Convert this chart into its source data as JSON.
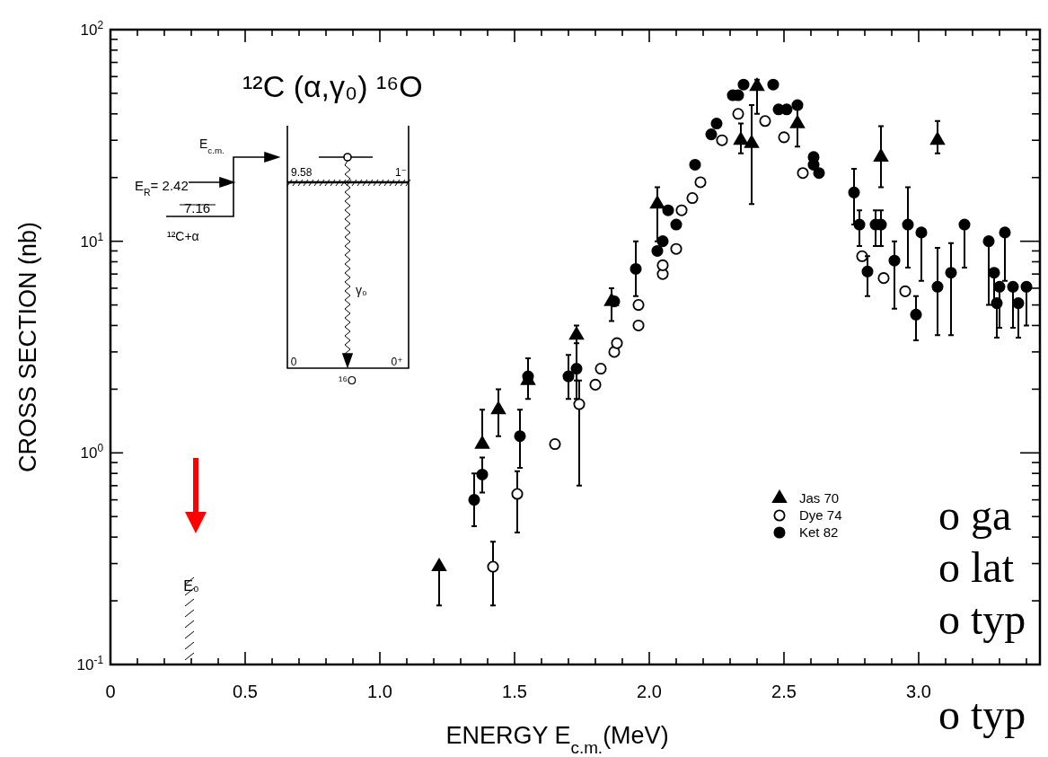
{
  "chart_data": {
    "type": "scatter",
    "xlabel": "ENERGY    E$_{c.m.}$(MeV)",
    "ylabel": "CROSS SECTION (nb)",
    "log": "y",
    "xlim": [
      0,
      3.45
    ],
    "ylim": [
      0.1,
      100
    ],
    "xticks": [
      0,
      {
        "value": 0.1,
        "label": null
      },
      {
        "value": 0.2,
        "label": null
      },
      {
        "value": 0.3,
        "label": null
      },
      {
        "value": 0.4,
        "label": null
      },
      0.5,
      {
        "value": 0.6,
        "label": null
      },
      {
        "value": 0.7,
        "label": null
      },
      {
        "value": 0.8,
        "label": null
      },
      {
        "value": 0.9,
        "label": null
      },
      {
        "value": 1,
        "label": "1.0"
      },
      {
        "value": 1.1,
        "label": null
      },
      {
        "value": 1.2,
        "label": null
      },
      {
        "value": 1.3,
        "label": null
      },
      {
        "value": 1.4,
        "label": null
      },
      1.5,
      {
        "value": 1.6,
        "label": null
      },
      {
        "value": 1.7,
        "label": null
      },
      {
        "value": 1.8,
        "label": null
      },
      {
        "value": 1.9,
        "label": null
      },
      {
        "value": 2,
        "label": "2.0"
      },
      {
        "value": 2.1,
        "label": null
      },
      {
        "value": 2.2,
        "label": null
      },
      {
        "value": 2.3,
        "label": null
      },
      {
        "value": 2.4,
        "label": null
      },
      2.5,
      {
        "value": 2.6,
        "label": null
      },
      {
        "value": 2.7,
        "label": null
      },
      {
        "value": 2.8,
        "label": null
      },
      {
        "value": 2.9,
        "label": null
      },
      {
        "value": 3,
        "label": "3.0"
      },
      {
        "value": 3.1,
        "label": null
      },
      {
        "value": 3.2,
        "label": null
      },
      {
        "value": 3.3,
        "label": null
      },
      {
        "value": 3.4,
        "label": null
      }
    ],
    "yticks": [
      {
        "value": 0.1,
        "label": "10$^{-1}$"
      },
      {
        "value": 0.2,
        "label": null
      },
      {
        "value": 0.3,
        "label": null
      },
      {
        "value": 0.4,
        "label": null
      },
      {
        "value": 0.5,
        "label": null
      },
      {
        "value": 0.6,
        "label": null
      },
      {
        "value": 0.7,
        "label": null
      },
      {
        "value": 0.8,
        "label": null
      },
      {
        "value": 0.9,
        "label": null
      },
      {
        "value": 1,
        "label": "10$^{0}$"
      },
      {
        "value": 2,
        "label": null
      },
      {
        "value": 3,
        "label": null
      },
      {
        "value": 4,
        "label": null
      },
      {
        "value": 5,
        "label": null
      },
      {
        "value": 6,
        "label": null
      },
      {
        "value": 7,
        "label": null
      },
      {
        "value": 8,
        "label": null
      },
      {
        "value": 9,
        "label": null
      },
      {
        "value": 10,
        "label": "10$^{1}$"
      },
      {
        "value": 20,
        "label": null
      },
      {
        "value": 30,
        "label": null
      },
      {
        "value": 40,
        "label": null
      },
      {
        "value": 50,
        "label": null
      },
      {
        "value": 60,
        "label": null
      },
      {
        "value": 70,
        "label": null
      },
      {
        "value": 80,
        "label": null
      },
      {
        "value": 90,
        "label": null
      },
      {
        "value": 100,
        "label": "10$^{2}$"
      }
    ],
    "legend": "bottom right",
    "series": [
      {
        "name": "Jas 70",
        "color": "#000000",
        "marker": "triangle",
        "x": [
          1.22,
          1.38,
          1.44,
          1.55,
          1.73,
          1.86,
          2.03,
          2.34,
          2.38,
          2.4,
          2.55,
          2.86,
          3.07
        ],
        "values": [
          0.29,
          1.1,
          1.6,
          2.2,
          3.6,
          5.2,
          15,
          30,
          29,
          54,
          36,
          25,
          30
        ],
        "errors": [
          [
            0.19,
            0.3
          ],
          [
            1.1,
            1.6
          ],
          [
            1.2,
            2
          ],
          null,
          [
            2.2,
            4
          ],
          [
            4.2,
            6
          ],
          [
            10,
            18
          ],
          [
            26,
            36
          ],
          [
            15,
            44
          ],
          [
            40,
            58
          ],
          [
            28,
            45
          ],
          [
            18,
            35
          ],
          [
            26,
            37
          ]
        ]
      },
      {
        "name": "Dye 74",
        "color": "#ffffff",
        "marker": "circle",
        "x": [
          1.42,
          1.51,
          1.65,
          1.74,
          1.8,
          1.82,
          1.87,
          1.88,
          1.96,
          1.96,
          2.05,
          2.05,
          2.1,
          2.12,
          2.16,
          2.19,
          2.27,
          2.33,
          2.43,
          2.5,
          2.57,
          2.79,
          2.87,
          2.95
        ],
        "values": [
          0.29,
          0.64,
          1.1,
          1.7,
          2.1,
          2.5,
          3,
          3.3,
          4,
          5,
          7,
          7.7,
          9.2,
          14,
          16,
          19,
          30,
          40,
          37,
          31,
          21,
          8.5,
          6.7,
          5.8
        ],
        "errors": [
          [
            0.19,
            0.38
          ],
          [
            0.42,
            0.82
          ],
          null,
          [
            0.7,
            2.2
          ],
          null,
          null,
          null,
          null,
          null,
          null,
          null,
          null,
          null,
          null,
          null,
          null,
          null,
          null,
          null,
          null,
          null,
          null,
          null,
          null
        ]
      },
      {
        "name": "Ket 82",
        "color": "#000000",
        "marker": "circle",
        "x": [
          1.35,
          1.38,
          1.52,
          1.55,
          1.7,
          1.73,
          1.87,
          1.95,
          2.03,
          2.05,
          2.07,
          2.1,
          2.17,
          2.23,
          2.25,
          2.31,
          2.33,
          2.35,
          2.46,
          2.48,
          2.51,
          2.55,
          2.61,
          2.61,
          2.63,
          2.76,
          2.78,
          2.81,
          2.84,
          2.86,
          2.91,
          2.96,
          2.99,
          3.01,
          3.07,
          3.12,
          3.17,
          3.26,
          3.28,
          3.29,
          3.3,
          3.32,
          3.35,
          3.37,
          3.4
        ],
        "values": [
          0.6,
          0.79,
          1.2,
          2.3,
          2.3,
          2.5,
          5.2,
          7.4,
          9,
          10,
          14,
          12,
          23,
          32,
          36,
          49,
          49,
          55,
          55,
          42,
          42,
          44,
          25,
          23,
          21,
          17,
          12,
          7.2,
          12,
          12,
          8.1,
          12,
          4.5,
          11,
          6.1,
          7.1,
          12,
          10,
          7.1,
          5.1,
          6.1,
          11,
          6.1,
          5.1,
          6.1
        ],
        "errors": [
          [
            0.45,
            0.8
          ],
          [
            0.65,
            0.95
          ],
          [
            0.85,
            1.6
          ],
          [
            1.8,
            2.8
          ],
          [
            1.8,
            2.9
          ],
          [
            1.8,
            3.3
          ],
          null,
          [
            5.5,
            10
          ],
          null,
          null,
          null,
          null,
          null,
          null,
          null,
          null,
          null,
          null,
          null,
          null,
          null,
          null,
          null,
          null,
          null,
          [
            12,
            22
          ],
          [
            9.5,
            14
          ],
          [
            5.5,
            8.5
          ],
          [
            9.5,
            14
          ],
          [
            9.5,
            14
          ],
          [
            4.8,
            10
          ],
          [
            7.5,
            18
          ],
          [
            3.4,
            5.5
          ],
          [
            6.5,
            11
          ],
          [
            3.6,
            9.3
          ],
          [
            3.6,
            9.8
          ],
          [
            7.5,
            12
          ],
          [
            5,
            10
          ],
          [
            5,
            7.1
          ],
          [
            3.5,
            5.1
          ],
          [
            3.9,
            6.1
          ],
          [
            6.5,
            11
          ],
          [
            3.9,
            6.1
          ],
          [
            3.5,
            5.1
          ],
          [
            4,
            6.1
          ]
        ]
      }
    ],
    "annotations": [
      "¹²C (α,γ₀) ¹⁶O",
      "E$_{c.m.}$",
      "E$_{R}$= 2.42",
      "7.16",
      "¹²C+α",
      "9.58",
      "1⁻",
      "γ₀",
      "0",
      "0⁺",
      "¹⁶O",
      "E₀",
      "o ga",
      "o lat",
      "o typ",
      "o typ"
    ]
  }
}
